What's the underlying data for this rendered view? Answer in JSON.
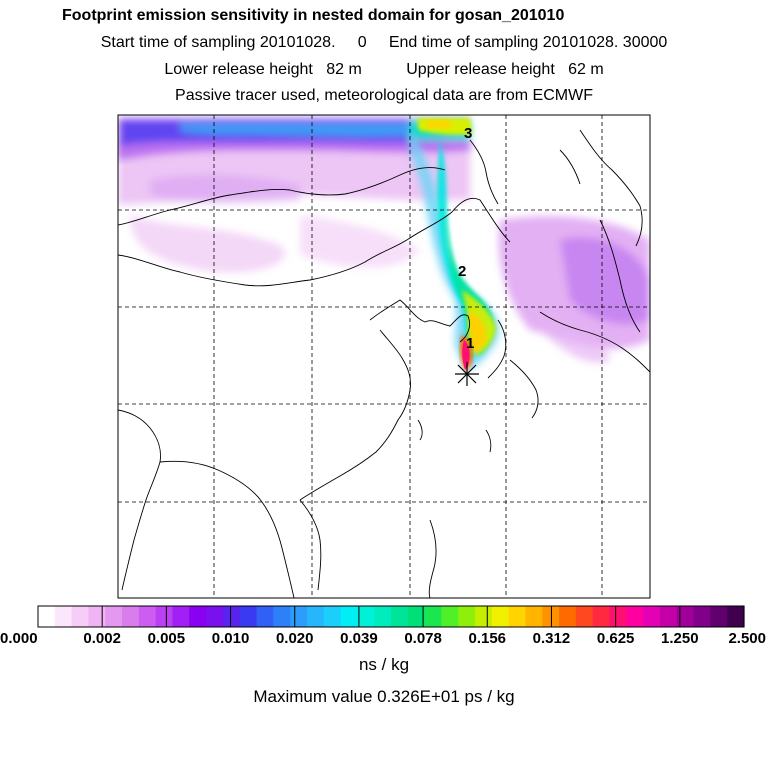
{
  "titles": {
    "line1": "Footprint emission sensitivity in nested domain for gosan_201010",
    "line2": "Start time of sampling 20101028.     0     End time of sampling 20101028. 30000",
    "line3": "Lower release height   82 m          Upper release height   62 m",
    "line4": "Passive tracer used, meteorological data are from ECMWF"
  },
  "map": {
    "trajectory_markers": [
      "1",
      "2",
      "3"
    ],
    "receptor_symbol": "star-receptor-icon",
    "grid_style": "dashed",
    "land_background": "#ffffff"
  },
  "colorbar": {
    "tick_labels": [
      "0.000",
      "0.002",
      "0.005",
      "0.010",
      "0.020",
      "0.039",
      "0.078",
      "0.156",
      "0.312",
      "0.625",
      "1.250",
      "2.500"
    ],
    "colors": [
      "#ffffff",
      "#fbe6fb",
      "#f6cdf6",
      "#f0b3f3",
      "#e598f0",
      "#d97ded",
      "#cc5df0",
      "#bb3ff3",
      "#a21ff5",
      "#8a00f0",
      "#7a10ee",
      "#5a22ee",
      "#3a3af2",
      "#3060f5",
      "#2d80f8",
      "#2d9cfa",
      "#25b6fb",
      "#1ad0fb",
      "#00eef4",
      "#00f0d8",
      "#00ecbc",
      "#00e49a",
      "#00e078",
      "#1ae650",
      "#50f028",
      "#8ef00a",
      "#c6ee00",
      "#f0f000",
      "#ffd400",
      "#ffb400",
      "#ff9200",
      "#ff6a00",
      "#ff4820",
      "#ff2a40",
      "#ff1070",
      "#ff00a0",
      "#e400b4",
      "#c400a8",
      "#a0009a",
      "#80008a",
      "#60006e",
      "#40004e"
    ],
    "units": "ns / kg",
    "maximum_label": "Maximum value  0.326E+01 ps / kg"
  }
}
